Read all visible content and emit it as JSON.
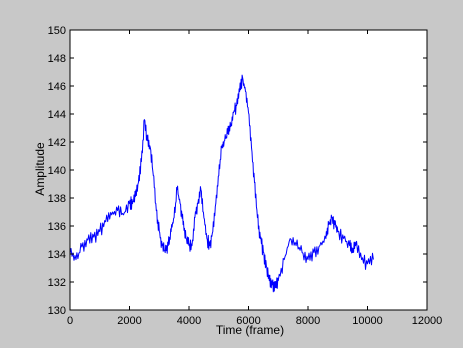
{
  "figure": {
    "background": "#c8c8c8",
    "plot_background": "#ffffff",
    "axis_color": "#000000"
  },
  "chart_data": {
    "type": "line",
    "title": "",
    "xlabel": "Time (frame)",
    "ylabel": "Amplitude",
    "xlim": [
      0,
      12000
    ],
    "ylim": [
      130,
      150
    ],
    "xticks": [
      0,
      2000,
      4000,
      6000,
      8000,
      10000,
      12000
    ],
    "yticks": [
      130,
      132,
      134,
      136,
      138,
      140,
      142,
      144,
      146,
      148,
      150
    ],
    "grid": false,
    "legend": "none",
    "series": [
      {
        "color": "#0000ff",
        "x": [
          0,
          200,
          400,
          600,
          800,
          1000,
          1200,
          1400,
          1600,
          1800,
          2000,
          2100,
          2200,
          2300,
          2400,
          2500,
          2600,
          2700,
          2800,
          2900,
          3000,
          3100,
          3200,
          3300,
          3400,
          3500,
          3600,
          3700,
          3800,
          3900,
          4000,
          4100,
          4200,
          4300,
          4400,
          4500,
          4600,
          4700,
          4800,
          4900,
          5000,
          5100,
          5200,
          5300,
          5400,
          5500,
          5600,
          5700,
          5800,
          5900,
          6000,
          6100,
          6200,
          6300,
          6400,
          6500,
          6600,
          6700,
          6800,
          6900,
          7000,
          7200,
          7400,
          7600,
          7800,
          8000,
          8200,
          8400,
          8600,
          8700,
          8800,
          8900,
          9000,
          9200,
          9400,
          9500,
          9600,
          9800,
          10000,
          10200
        ],
        "y": [
          134.0,
          133.6,
          134.5,
          135.0,
          135.2,
          135.6,
          136.3,
          136.8,
          137.1,
          136.8,
          137.6,
          137.6,
          138.1,
          139.1,
          140.6,
          143.6,
          142.1,
          141.6,
          139.6,
          137.1,
          135.6,
          134.6,
          134.1,
          134.6,
          135.6,
          136.6,
          138.6,
          137.6,
          136.1,
          135.1,
          134.6,
          134.6,
          136.6,
          137.6,
          138.6,
          136.6,
          135.1,
          134.6,
          135.6,
          137.6,
          139.6,
          141.6,
          142.1,
          142.6,
          143.1,
          144.1,
          144.6,
          145.6,
          146.6,
          145.6,
          144.1,
          141.6,
          139.1,
          136.6,
          135.1,
          134.1,
          133.1,
          132.1,
          131.8,
          131.6,
          132.1,
          133.6,
          135.1,
          134.6,
          134.1,
          133.6,
          134.1,
          134.6,
          135.1,
          136.1,
          136.6,
          136.1,
          135.6,
          135.1,
          134.6,
          134.1,
          134.6,
          133.6,
          133.3,
          133.6
        ]
      }
    ]
  }
}
